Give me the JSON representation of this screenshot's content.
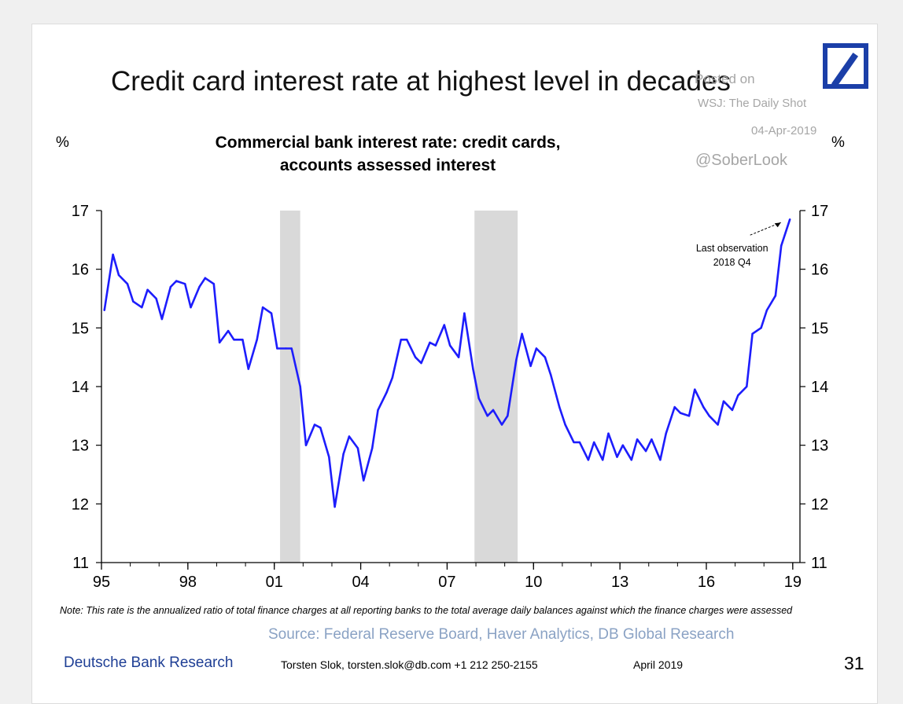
{
  "header": {
    "title": "Credit card interest rate at highest level in decades",
    "unit_left": "%",
    "unit_right": "%"
  },
  "watermark": {
    "posted": "Posted on",
    "source": "WSJ: The Daily Shot",
    "date": "04-Apr-2019",
    "handle": "@SoberLook"
  },
  "footer": {
    "note": "Note: This rate is the annualized ratio of total finance charges at all reporting banks to the total average daily balances against which the finance charges were assessed",
    "source": "Source: Federal Reserve Board, Haver Analytics, DB Global Research",
    "brand": "Deutsche Bank Research",
    "author": "Torsten Slok, torsten.slok@db.com +1 212 250-2155",
    "date": "April 2019",
    "page_number": "31"
  },
  "colors": {
    "line": "#1d1dfc",
    "recession_shading": "#d9d9d9",
    "brand": "#1f3f95",
    "watermark": "#a6a6a6",
    "source_text": "#8aa2c4"
  },
  "chart_data": {
    "type": "line",
    "title": "Commercial bank interest rate: credit cards, accounts assessed interest",
    "ylim": [
      11,
      17
    ],
    "xlim": [
      1995,
      2019.25
    ],
    "y_ticks": [
      11,
      12,
      13,
      14,
      15,
      16,
      17
    ],
    "x_ticks": [
      {
        "value": 1995,
        "label": "95"
      },
      {
        "value": 1998,
        "label": "98"
      },
      {
        "value": 2001,
        "label": "01"
      },
      {
        "value": 2004,
        "label": "04"
      },
      {
        "value": 2007,
        "label": "07"
      },
      {
        "value": 2010,
        "label": "10"
      },
      {
        "value": 2013,
        "label": "13"
      },
      {
        "value": 2016,
        "label": "16"
      },
      {
        "value": 2019,
        "label": "19"
      }
    ],
    "recessions": [
      {
        "start": 2001.2,
        "end": 2001.9
      },
      {
        "start": 2007.95,
        "end": 2009.45
      }
    ],
    "annotation": {
      "text": [
        "Last observation",
        "2018 Q4"
      ],
      "x": 2018.75,
      "y": 16.85
    },
    "series": [
      {
        "x": [
          1995.1,
          1995.4,
          1995.6,
          1995.9,
          1996.1,
          1996.4,
          1996.6,
          1996.9,
          1997.1,
          1997.4,
          1997.6,
          1997.9,
          1998.1,
          1998.4,
          1998.6,
          1998.9,
          1999.1,
          1999.4,
          1999.6,
          1999.9,
          2000.1,
          2000.4,
          2000.6,
          2000.9,
          2001.1,
          2001.4,
          2001.6,
          2001.9,
          2002.1,
          2002.4,
          2002.6,
          2002.9,
          2003.1,
          2003.4,
          2003.6,
          2003.9,
          2004.1,
          2004.4,
          2004.6,
          2004.9,
          2005.1,
          2005.4,
          2005.6,
          2005.9,
          2006.1,
          2006.4,
          2006.6,
          2006.9,
          2007.1,
          2007.4,
          2007.6,
          2007.9,
          2008.1,
          2008.4,
          2008.6,
          2008.9,
          2009.1,
          2009.4,
          2009.6,
          2009.9,
          2010.1,
          2010.4,
          2010.6,
          2010.9,
          2011.1,
          2011.4,
          2011.6,
          2011.9,
          2012.1,
          2012.4,
          2012.6,
          2012.9,
          2013.1,
          2013.4,
          2013.6,
          2013.9,
          2014.1,
          2014.4,
          2014.6,
          2014.9,
          2015.1,
          2015.4,
          2015.6,
          2015.9,
          2016.1,
          2016.4,
          2016.6,
          2016.9,
          2017.1,
          2017.4,
          2017.6,
          2017.9,
          2018.1,
          2018.4,
          2018.6,
          2018.9
        ],
        "y": [
          15.3,
          16.25,
          15.9,
          15.75,
          15.45,
          15.35,
          15.65,
          15.5,
          15.15,
          15.7,
          15.8,
          15.75,
          15.35,
          15.7,
          15.85,
          15.75,
          14.75,
          14.95,
          14.8,
          14.8,
          14.3,
          14.8,
          15.35,
          15.25,
          14.65,
          14.65,
          14.65,
          14.0,
          13.0,
          13.35,
          13.3,
          12.8,
          11.95,
          12.85,
          13.15,
          12.95,
          12.4,
          12.95,
          13.6,
          13.9,
          14.15,
          14.8,
          14.8,
          14.5,
          14.4,
          14.75,
          14.7,
          15.05,
          14.7,
          14.5,
          15.25,
          14.3,
          13.8,
          13.5,
          13.6,
          13.35,
          13.5,
          14.45,
          14.9,
          14.35,
          14.65,
          14.5,
          14.2,
          13.65,
          13.35,
          13.05,
          13.05,
          12.75,
          13.05,
          12.75,
          13.2,
          12.8,
          13.0,
          12.75,
          13.1,
          12.9,
          13.1,
          12.75,
          13.2,
          13.65,
          13.55,
          13.5,
          13.95,
          13.65,
          13.5,
          13.35,
          13.75,
          13.6,
          13.85,
          14.0,
          14.9,
          15.0,
          15.3,
          15.55,
          16.4,
          16.85
        ]
      }
    ]
  }
}
